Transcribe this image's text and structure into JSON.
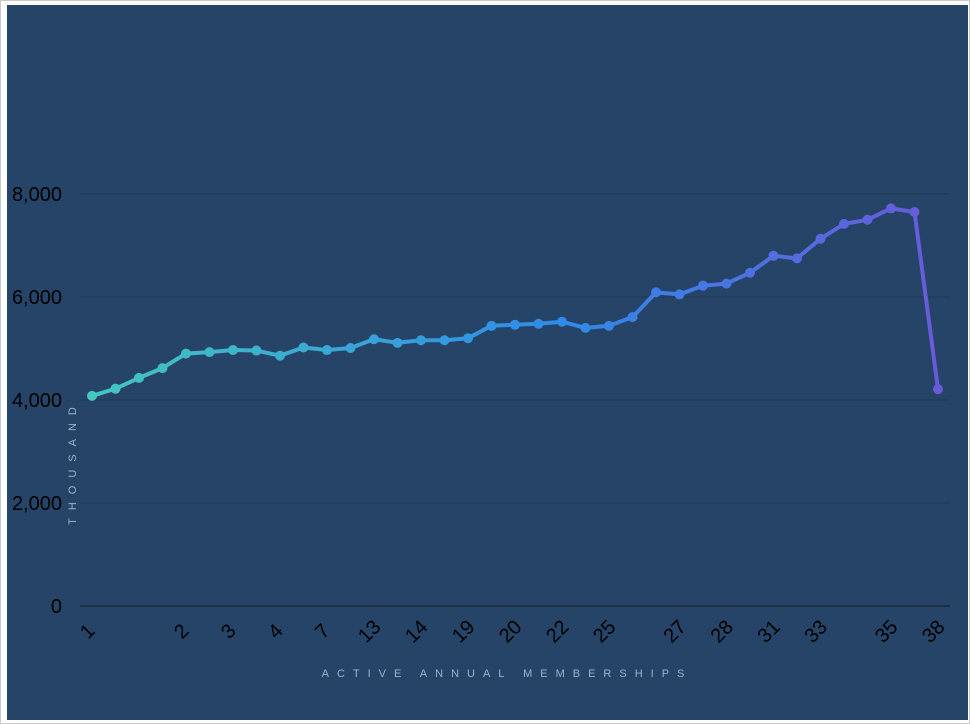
{
  "chart_data": {
    "type": "line",
    "title": "",
    "xlabel": "ACTIVE ANNUAL MEMBERSHIPS",
    "ylabel": "THOUSAND",
    "ylim": [
      0,
      8000
    ],
    "y_ticks": [
      "0",
      "2,000",
      "4,000",
      "6,000",
      "8,000"
    ],
    "grid": true,
    "legend": "none",
    "colors": {
      "background": "#254467",
      "grid": "#1d3856",
      "start": "#45c6c0",
      "middle": "#2f8be8",
      "end": "#6a5ad9"
    },
    "x_tick_labels": [
      "1",
      "2",
      "3",
      "4",
      "7",
      "13",
      "14",
      "19",
      "20",
      "22",
      "25",
      "27",
      "28",
      "31",
      "33",
      "35",
      "38"
    ],
    "x_tick_indices": [
      0,
      4,
      6,
      8,
      10,
      12,
      14,
      16,
      18,
      20,
      22,
      25,
      27,
      29,
      31,
      34,
      36
    ],
    "series": [
      {
        "values": [
          4080,
          4220,
          4430,
          4620,
          4900,
          4930,
          4970,
          4960,
          4860,
          5020,
          4970,
          5010,
          5180,
          5110,
          5160,
          5160,
          5200,
          5440,
          5460,
          5480,
          5520,
          5400,
          5440,
          5610,
          6090,
          6050,
          6220,
          6260,
          6470,
          6800,
          6750,
          7130,
          7420,
          7500,
          7720,
          7650,
          4210
        ]
      }
    ]
  }
}
